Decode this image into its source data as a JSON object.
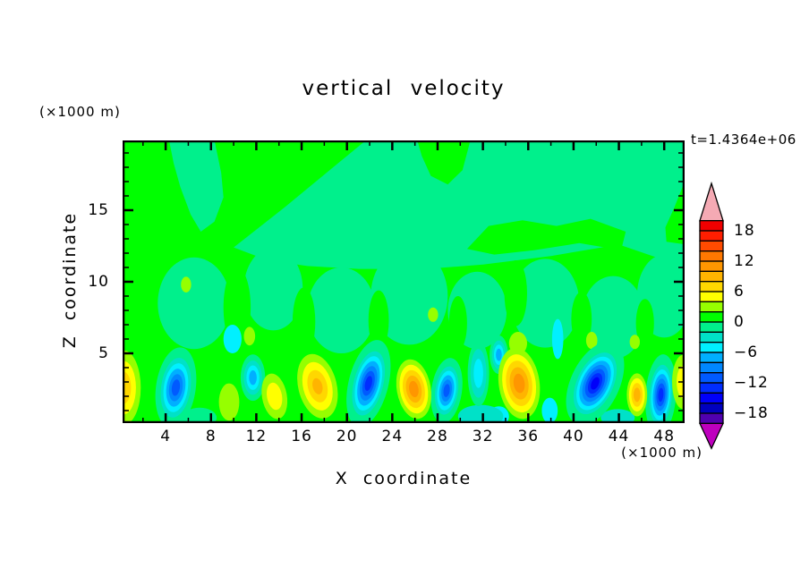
{
  "chart_data": {
    "type": "filled_contour",
    "title": "vertical velocity",
    "time_annotation": "t=1.4364e+06",
    "xlabel": "X coordinate",
    "ylabel": "Z coordinate",
    "x_units": "(×1000 m)",
    "y_units": "(×1000 m)",
    "x_range": [
      0.2,
      49.8
    ],
    "z_range": [
      0.125,
      19.875
    ],
    "x_major_ticks": [
      4,
      8,
      12,
      16,
      20,
      24,
      28,
      32,
      36,
      40,
      44,
      48
    ],
    "x_minor_step": 2,
    "z_major_ticks": [
      5,
      10,
      15
    ],
    "z_minor_step": 1,
    "levels": {
      "min": -20,
      "max": 20,
      "step": 2
    },
    "palette": [
      "#5000AF",
      "#0000BE",
      "#0000FA",
      "#002DFF",
      "#005AFF",
      "#0087FF",
      "#00AFFF",
      "#00F0FF",
      "#00E1C8",
      "#00F08C",
      "#00FF00",
      "#96FF00",
      "#FFFF00",
      "#FFD700",
      "#FFB400",
      "#FF9600",
      "#FF7800",
      "#FF4B00",
      "#FF1E00",
      "#F00000"
    ],
    "over_color": "#F5AAB4",
    "under_color": "#BE00BE",
    "colorbar_labels": [
      18,
      12,
      6,
      0,
      -6,
      -12,
      -18
    ],
    "background_value": 1,
    "features": [
      {
        "x": 0.3,
        "z": 2.6,
        "rx": 1.5,
        "rz": 2.6,
        "peak": 7,
        "rot": 0
      },
      {
        "x": 9.6,
        "z": 1.6,
        "rx": 0.9,
        "rz": 1.3,
        "peak": 3,
        "rot": 0
      },
      {
        "x": 13.6,
        "z": 2.0,
        "rx": 1.1,
        "rz": 1.6,
        "peak": 5,
        "rot": -10
      },
      {
        "x": 17.4,
        "z": 2.7,
        "rx": 1.7,
        "rz": 2.3,
        "peak": 8,
        "rot": -14
      },
      {
        "x": 25.9,
        "z": 2.5,
        "rx": 1.5,
        "rz": 2.1,
        "peak": 11,
        "rot": -10
      },
      {
        "x": 35.2,
        "z": 2.9,
        "rx": 1.8,
        "rz": 2.5,
        "peak": 11,
        "rot": -8
      },
      {
        "x": 45.6,
        "z": 2.1,
        "rx": 0.9,
        "rz": 1.5,
        "peak": 9,
        "rot": 0
      },
      {
        "x": 49.7,
        "z": 3.0,
        "rx": 1.0,
        "rz": 1.9,
        "peak": 5,
        "rot": 0
      },
      {
        "x": 4.9,
        "z": 2.6,
        "rx": 1.3,
        "rz": 2.1,
        "peak": -11,
        "rot": 8
      },
      {
        "x": 11.7,
        "z": 3.3,
        "rx": 0.8,
        "rz": 1.2,
        "peak": -7,
        "rot": 0
      },
      {
        "x": 21.9,
        "z": 2.9,
        "rx": 1.3,
        "rz": 2.3,
        "peak": -13,
        "rot": 14
      },
      {
        "x": 28.8,
        "z": 2.4,
        "rx": 1.0,
        "rz": 1.7,
        "peak": -11,
        "rot": 8
      },
      {
        "x": 31.6,
        "z": 3.6,
        "rx": 0.7,
        "rz": 1.7,
        "peak": -5,
        "rot": 0
      },
      {
        "x": 33.4,
        "z": 4.9,
        "rx": 0.6,
        "rz": 1.0,
        "peak": -7,
        "rot": 0
      },
      {
        "x": 41.9,
        "z": 2.9,
        "rx": 1.6,
        "rz": 2.3,
        "peak": -15,
        "rot": 25
      },
      {
        "x": 47.7,
        "z": 2.1,
        "rx": 1.0,
        "rz": 2.1,
        "peak": -13,
        "rot": 4
      }
    ],
    "specks": [
      {
        "x": 37.9,
        "z": 1.0,
        "rx": 0.7,
        "rz": 0.9,
        "v": -5
      },
      {
        "x": 38.6,
        "z": 6.0,
        "rx": 0.5,
        "rz": 1.4,
        "v": -5
      },
      {
        "x": 33.4,
        "z": 0.6,
        "rx": 0.9,
        "rz": 0.7,
        "v": -5
      },
      {
        "x": 31.8,
        "z": 0.6,
        "rx": 2.0,
        "rz": 0.8,
        "v": -3
      },
      {
        "x": 43.9,
        "z": 0.5,
        "rx": 1.5,
        "rz": 0.6,
        "v": -3
      },
      {
        "x": 7.0,
        "z": 0.5,
        "rx": 1.5,
        "rz": 0.7,
        "v": -1
      },
      {
        "x": 9.9,
        "z": 6.0,
        "rx": 0.8,
        "rz": 1.0,
        "v": -5
      },
      {
        "x": 5.8,
        "z": 9.8,
        "rx": 0.45,
        "rz": 0.55,
        "v": 3
      },
      {
        "x": 11.4,
        "z": 6.2,
        "rx": 0.5,
        "rz": 0.65,
        "v": 3
      },
      {
        "x": 27.6,
        "z": 7.7,
        "rx": 0.45,
        "rz": 0.5,
        "v": 3
      },
      {
        "x": 41.6,
        "z": 5.9,
        "rx": 0.5,
        "rz": 0.6,
        "v": 3
      },
      {
        "x": 45.4,
        "z": 5.8,
        "rx": 0.45,
        "rz": 0.5,
        "v": 3
      },
      {
        "x": 35.1,
        "z": 5.7,
        "rx": 0.8,
        "rz": 0.8,
        "v": 3
      }
    ],
    "mid_patches": [
      {
        "x": 6.5,
        "z": 8.5,
        "rx": 3.2,
        "rz": 3.2
      },
      {
        "x": 13.5,
        "z": 9.5,
        "rx": 2.6,
        "rz": 2.9
      },
      {
        "x": 19.5,
        "z": 8.0,
        "rx": 3.0,
        "rz": 3.0
      },
      {
        "x": 25.5,
        "z": 9.0,
        "rx": 3.4,
        "rz": 3.4
      },
      {
        "x": 31.5,
        "z": 8.0,
        "rx": 2.6,
        "rz": 2.7
      },
      {
        "x": 37.5,
        "z": 8.5,
        "rx": 3.0,
        "rz": 3.1
      },
      {
        "x": 43.5,
        "z": 7.5,
        "rx": 2.8,
        "rz": 2.9
      },
      {
        "x": 48.0,
        "z": 9.0,
        "rx": 2.4,
        "rz": 2.9
      }
    ],
    "green_columns": [
      {
        "x": 10.3,
        "z": 8.2,
        "rx": 1.2,
        "rz": 2.8
      },
      {
        "x": 16.2,
        "z": 7.2,
        "rx": 1.0,
        "rz": 2.4
      },
      {
        "x": 22.8,
        "z": 7.3,
        "rx": 0.9,
        "rz": 2.1
      },
      {
        "x": 29.8,
        "z": 7.1,
        "rx": 0.8,
        "rz": 1.9
      },
      {
        "x": 34.9,
        "z": 9.2,
        "rx": 1.0,
        "rz": 2.3
      },
      {
        "x": 40.7,
        "z": 7.4,
        "rx": 0.9,
        "rz": 1.9
      },
      {
        "x": 46.3,
        "z": 7.1,
        "rx": 0.8,
        "rz": 1.7
      }
    ],
    "upper_negative_regions": [
      [
        [
          4.3,
          19.9
        ],
        [
          8.3,
          19.9
        ],
        [
          8.9,
          17.6
        ],
        [
          9.1,
          15.9
        ],
        [
          8.3,
          14.2
        ],
        [
          7.1,
          13.5
        ],
        [
          6.2,
          14.7
        ],
        [
          5.3,
          16.6
        ],
        [
          4.7,
          18.3
        ]
      ],
      [
        [
          13.0,
          11.5
        ],
        [
          10.0,
          12.4
        ],
        [
          14.5,
          15.2
        ],
        [
          21.7,
          19.9
        ],
        [
          49.9,
          19.9
        ],
        [
          49.9,
          11.0
        ],
        [
          44.0,
          12.6
        ],
        [
          38.0,
          11.8
        ],
        [
          32.0,
          11.2
        ],
        [
          27.0,
          10.9
        ],
        [
          21.0,
          10.9
        ],
        [
          16.5,
          11.1
        ]
      ]
    ],
    "green_islands": [
      [
        [
          26.2,
          19.9
        ],
        [
          30.9,
          19.9
        ],
        [
          30.2,
          17.8
        ],
        [
          28.9,
          16.8
        ],
        [
          27.4,
          17.4
        ],
        [
          26.6,
          18.8
        ]
      ],
      [
        [
          30.6,
          12.3
        ],
        [
          32.5,
          13.9
        ],
        [
          35.5,
          14.3
        ],
        [
          38.5,
          13.9
        ],
        [
          41.5,
          14.4
        ],
        [
          44.6,
          13.5
        ],
        [
          44.2,
          12.2
        ],
        [
          40.5,
          12.7
        ],
        [
          36.5,
          12.2
        ],
        [
          33.0,
          11.9
        ]
      ],
      [
        [
          48.2,
          12.8
        ],
        [
          49.9,
          12.6
        ],
        [
          49.9,
          17.2
        ],
        [
          48.9,
          15.2
        ],
        [
          48.1,
          13.8
        ]
      ]
    ]
  }
}
